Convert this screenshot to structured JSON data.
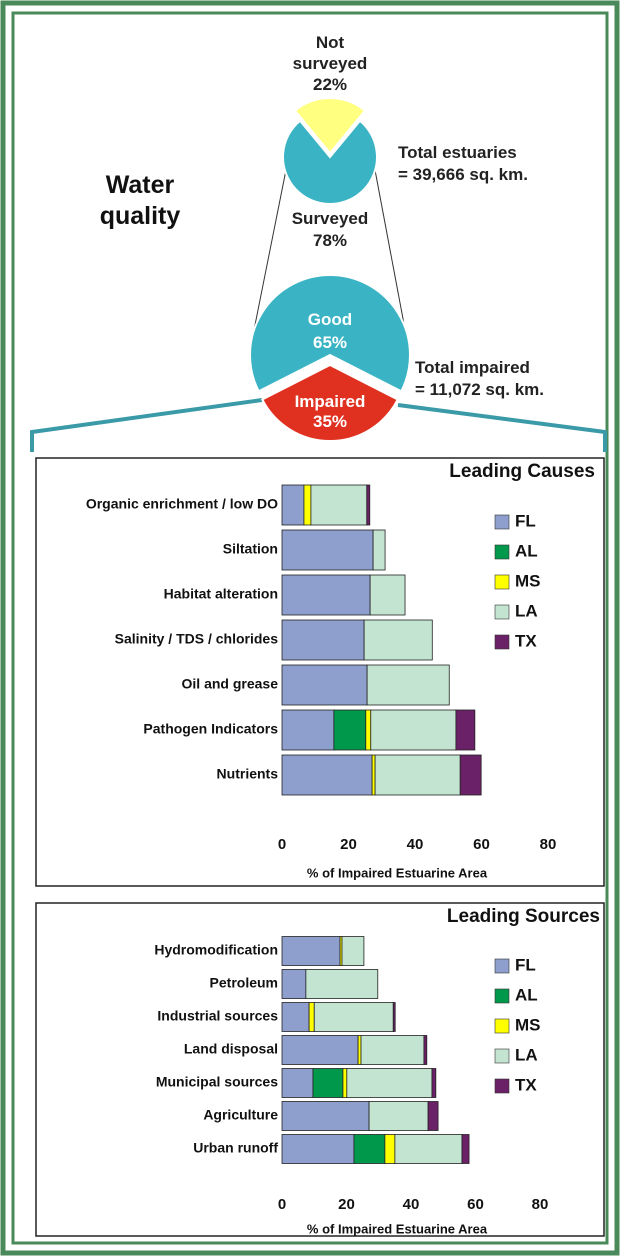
{
  "header": {
    "title": "Water quality"
  },
  "chart_data": [
    {
      "type": "pie",
      "categories": [
        "Not surveyed",
        "Surveyed"
      ],
      "values": [
        22,
        78
      ],
      "value_labels": [
        "22%",
        "78%"
      ],
      "colors": [
        "#ffff80",
        "#3ab4c4"
      ],
      "annotation": [
        "Total estuaries",
        "= 39,666 sq. km."
      ]
    },
    {
      "type": "pie",
      "categories": [
        "Good",
        "Impaired"
      ],
      "values": [
        65,
        35
      ],
      "value_labels": [
        "65%",
        "35%"
      ],
      "colors": [
        "#3ab4c4",
        "#e03020"
      ],
      "annotation": [
        "Total impaired",
        "= 11,072 sq. km."
      ]
    },
    {
      "type": "bar",
      "orientation": "horizontal",
      "stacked": true,
      "title": "Leading Causes",
      "categories": [
        "Organic enrichment / low DO",
        "Siltation",
        "Habitat alteration",
        "Salinity / TDS / chlorides",
        "Oil and grease",
        "Pathogen Indicators",
        "Nutrients"
      ],
      "series": [
        {
          "name": "FL",
          "color": "#8e9fce",
          "values": [
            6.6,
            27.4,
            26.5,
            24.7,
            25.6,
            15.6,
            27.1
          ]
        },
        {
          "name": "AL",
          "color": "#00994c",
          "values": [
            0,
            0,
            0,
            0,
            0,
            9.6,
            0
          ]
        },
        {
          "name": "MS",
          "color": "#ffff00",
          "values": [
            2.1,
            0,
            0,
            0,
            0,
            1.5,
            0.9
          ]
        },
        {
          "name": "LA",
          "color": "#c2e4d0",
          "values": [
            16.8,
            3.6,
            10.5,
            20.5,
            24.7,
            25.6,
            25.6
          ]
        },
        {
          "name": "TX",
          "color": "#6b2167",
          "values": [
            0.9,
            0,
            0,
            0,
            0,
            5.7,
            6.3
          ]
        }
      ],
      "xlim": [
        0,
        80
      ],
      "xticks": [
        0,
        20,
        40,
        60,
        80
      ],
      "xlabel": "% of Impaired Estuarine Area",
      "legend": "upper right"
    },
    {
      "type": "bar",
      "orientation": "horizontal",
      "stacked": true,
      "title": "Leading Sources",
      "categories": [
        "Hydromodification",
        "Petroleum",
        "Industrial sources",
        "Land disposal",
        "Municipal sources",
        "Agriculture",
        "Urban runoff"
      ],
      "series": [
        {
          "name": "FL",
          "color": "#8e9fce",
          "values": [
            18,
            7.4,
            8.4,
            23.6,
            9.6,
            27,
            22.3
          ]
        },
        {
          "name": "AL",
          "color": "#00994c",
          "values": [
            0,
            0,
            0,
            0,
            9.3,
            0,
            9.6
          ]
        },
        {
          "name": "MS",
          "color": "#ffff00",
          "values": [
            0.6,
            0,
            1.6,
            0.9,
            1.2,
            0,
            3.1
          ]
        },
        {
          "name": "LA",
          "color": "#c2e4d0",
          "values": [
            6.8,
            22.3,
            24.5,
            19.5,
            26.4,
            18.3,
            20.8
          ]
        },
        {
          "name": "TX",
          "color": "#6b2167",
          "values": [
            0,
            0,
            0.6,
            0.9,
            1.2,
            3.1,
            2.2
          ]
        }
      ],
      "xlim": [
        0,
        80
      ],
      "xticks": [
        0,
        20,
        40,
        60,
        80
      ],
      "xlabel": "% of Impaired Estuarine Area",
      "legend": "upper right"
    }
  ]
}
